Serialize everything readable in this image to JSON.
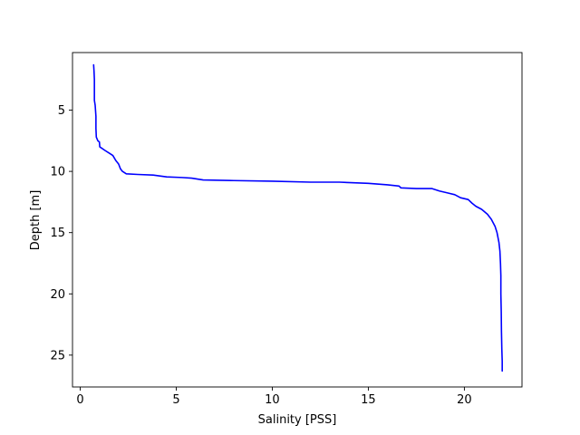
{
  "chart_data": {
    "type": "line",
    "title": "",
    "xlabel": "Salinity [PSS]",
    "ylabel": "Depth [m]",
    "xlim": [
      -0.4,
      23.0
    ],
    "ylim": [
      27.6,
      0.3
    ],
    "y_inverted": true,
    "grid": false,
    "legend": "none",
    "xticks": [
      0,
      5,
      10,
      15,
      20
    ],
    "yticks": [
      5,
      10,
      15,
      20,
      25
    ],
    "series": [
      {
        "color": "#0000ff",
        "points": [
          [
            0.7,
            1.3
          ],
          [
            0.72,
            1.8
          ],
          [
            0.74,
            2.5
          ],
          [
            0.74,
            3.5
          ],
          [
            0.74,
            4.2
          ],
          [
            0.78,
            4.6
          ],
          [
            0.82,
            5.5
          ],
          [
            0.82,
            6.5
          ],
          [
            0.84,
            7.2
          ],
          [
            0.92,
            7.5
          ],
          [
            1.0,
            7.6
          ],
          [
            1.02,
            8.0
          ],
          [
            1.3,
            8.3
          ],
          [
            1.5,
            8.5
          ],
          [
            1.7,
            8.7
          ],
          [
            1.85,
            9.1
          ],
          [
            2.0,
            9.4
          ],
          [
            2.1,
            9.8
          ],
          [
            2.2,
            10.0
          ],
          [
            2.4,
            10.2
          ],
          [
            3.0,
            10.25
          ],
          [
            3.8,
            10.3
          ],
          [
            4.5,
            10.45
          ],
          [
            5.3,
            10.5
          ],
          [
            5.8,
            10.55
          ],
          [
            6.4,
            10.7
          ],
          [
            8.0,
            10.75
          ],
          [
            10.0,
            10.8
          ],
          [
            12.0,
            10.88
          ],
          [
            13.5,
            10.88
          ],
          [
            15.0,
            10.98
          ],
          [
            16.0,
            11.1
          ],
          [
            16.6,
            11.2
          ],
          [
            16.7,
            11.35
          ],
          [
            17.5,
            11.4
          ],
          [
            18.3,
            11.4
          ],
          [
            18.7,
            11.6
          ],
          [
            19.1,
            11.75
          ],
          [
            19.5,
            11.9
          ],
          [
            19.8,
            12.15
          ],
          [
            20.2,
            12.3
          ],
          [
            20.4,
            12.6
          ],
          [
            20.6,
            12.85
          ],
          [
            20.9,
            13.1
          ],
          [
            21.2,
            13.5
          ],
          [
            21.4,
            13.9
          ],
          [
            21.6,
            14.5
          ],
          [
            21.7,
            15.0
          ],
          [
            21.8,
            15.8
          ],
          [
            21.85,
            16.5
          ],
          [
            21.88,
            17.5
          ],
          [
            21.9,
            18.5
          ],
          [
            21.9,
            20.0
          ],
          [
            21.92,
            21.5
          ],
          [
            21.93,
            23.0
          ],
          [
            21.95,
            24.5
          ],
          [
            21.97,
            25.5
          ],
          [
            21.97,
            26.3
          ]
        ]
      }
    ]
  }
}
